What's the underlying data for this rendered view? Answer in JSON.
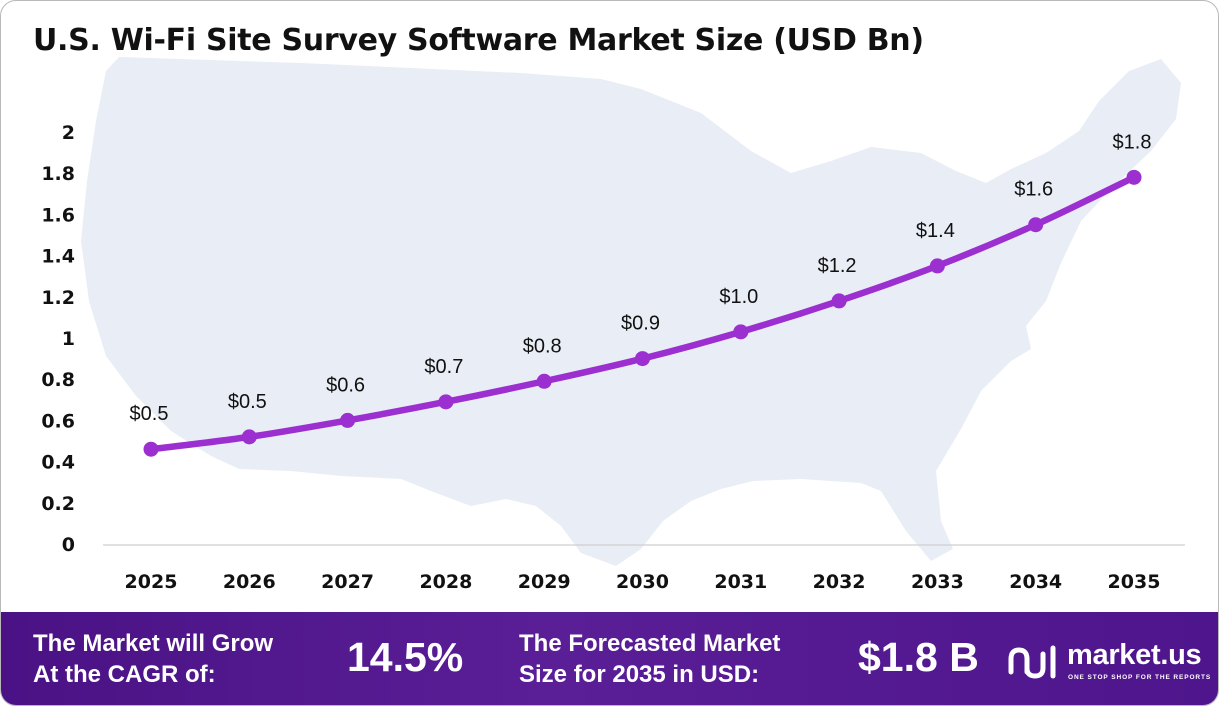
{
  "title": "U.S. Wi-Fi Site Survey Software Market Size (USD Bn)",
  "chart_data": {
    "type": "line",
    "title": "U.S. Wi-Fi Site Survey Software Market Size (USD Bn)",
    "xlabel": "",
    "ylabel": "",
    "categories": [
      "2025",
      "2026",
      "2027",
      "2028",
      "2029",
      "2030",
      "2031",
      "2032",
      "2033",
      "2034",
      "2035"
    ],
    "values": [
      0.46,
      0.52,
      0.6,
      0.69,
      0.79,
      0.9,
      1.03,
      1.18,
      1.35,
      1.55,
      1.78
    ],
    "data_labels": [
      "$0.5",
      "$0.5",
      "$0.6",
      "$0.7",
      "$0.8",
      "$0.9",
      "$1.0",
      "$1.2",
      "$1.4",
      "$1.6",
      "$1.8"
    ],
    "ylim": [
      0,
      2
    ],
    "yticks": [
      "0",
      "0.2",
      "0.4",
      "0.6",
      "0.8",
      "1",
      "1.2",
      "1.4",
      "1.6",
      "1.8",
      "2"
    ],
    "grid": false,
    "line_color": "#9b2fcf",
    "background_map": "USA map silhouette"
  },
  "footer": {
    "cagr_label_line1": "The Market will Grow",
    "cagr_label_line2": "At the CAGR of:",
    "cagr_value": "14.5%",
    "forecast_label_line1": "The Forecasted Market",
    "forecast_label_line2": "Size for 2035 in USD:",
    "forecast_value": "$1.8 B",
    "brand_name": "market.us",
    "brand_tagline": "ONE STOP SHOP FOR THE REPORTS"
  },
  "colors": {
    "footer_bg": "#4e158c",
    "line": "#9b2fcf",
    "map": "#e9edf6"
  }
}
